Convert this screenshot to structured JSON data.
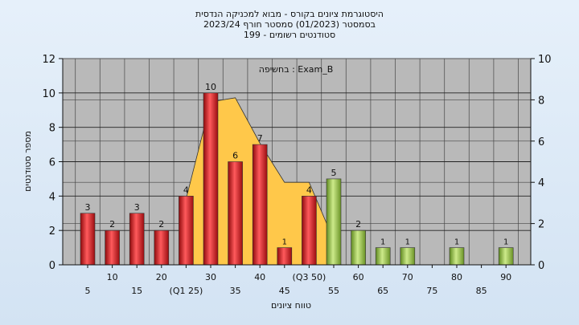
{
  "chart_data": {
    "type": "bar",
    "title_lines": [
      "היסטוגרמת ציונים בקורס - מבוא למכניקה הנדסית",
      "בסמסטר  (01/2023)  סמסטר חורף  2023/24",
      "סטודנטים רשומים - 199"
    ],
    "annotation": "בחשיפה : Exam_B",
    "ylabel": "מספר סטודנטים",
    "xlabel": "טווח ציונים",
    "ylim": [
      0,
      12
    ],
    "y_ticks": [
      "0",
      "2",
      "4",
      "6",
      "8",
      "10",
      "12"
    ],
    "y2lim": [
      0,
      10
    ],
    "y2_ticks": [
      "0",
      "2",
      "4",
      "6",
      "8",
      "10"
    ],
    "x_tick_labels": [
      {
        "label": "5",
        "row": 1
      },
      {
        "label": "10",
        "row": 0
      },
      {
        "label": "15",
        "row": 1
      },
      {
        "label": "20",
        "row": 0
      },
      {
        "label": "(Q1 25)",
        "row": 1
      },
      {
        "label": "30",
        "row": 0
      },
      {
        "label": "35",
        "row": 1
      },
      {
        "label": "40",
        "row": 0
      },
      {
        "label": "45",
        "row": 1
      },
      {
        "label": "(Q3 50)",
        "row": 0
      },
      {
        "label": "55",
        "row": 1
      },
      {
        "label": "60",
        "row": 0
      },
      {
        "label": "65",
        "row": 1
      },
      {
        "label": "70",
        "row": 0
      },
      {
        "label": "75",
        "row": 1
      },
      {
        "label": "80",
        "row": 0
      },
      {
        "label": "85",
        "row": 1
      },
      {
        "label": "90",
        "row": 0
      }
    ],
    "bars": [
      {
        "value": 3,
        "label": "3",
        "group": "fail"
      },
      {
        "value": 2,
        "label": "2",
        "group": "fail"
      },
      {
        "value": 3,
        "label": "3",
        "group": "fail"
      },
      {
        "value": 2,
        "label": "2",
        "group": "fail"
      },
      {
        "value": 4,
        "label": "4",
        "group": "fail"
      },
      {
        "value": 10,
        "label": "10",
        "group": "fail"
      },
      {
        "value": 6,
        "label": "6",
        "group": "fail"
      },
      {
        "value": 7,
        "label": "7",
        "group": "fail"
      },
      {
        "value": 1,
        "label": "1",
        "group": "fail"
      },
      {
        "value": 4,
        "label": "4",
        "group": "fail"
      },
      {
        "value": 5,
        "label": "5",
        "group": "pass"
      },
      {
        "value": 2,
        "label": "2",
        "group": "pass"
      },
      {
        "value": 1,
        "label": "1",
        "group": "pass"
      },
      {
        "value": 1,
        "label": "1",
        "group": "pass"
      },
      {
        "value": 0,
        "label": "",
        "group": "pass"
      },
      {
        "value": 1,
        "label": "1",
        "group": "pass"
      },
      {
        "value": 0,
        "label": "",
        "group": "pass"
      },
      {
        "value": 1,
        "label": "1",
        "group": "pass"
      }
    ],
    "area_series": {
      "axis": "right",
      "start_index": 4,
      "end_index": 10,
      "values": [
        3.2,
        7.9,
        8.1,
        5.9,
        4.0,
        4.0,
        1.2
      ]
    },
    "colors": {
      "fail": "#e8262a",
      "pass": "#9bc24a",
      "area": "#ffc84a",
      "plot_bg": "#b9b9b9"
    },
    "grid": true
  }
}
